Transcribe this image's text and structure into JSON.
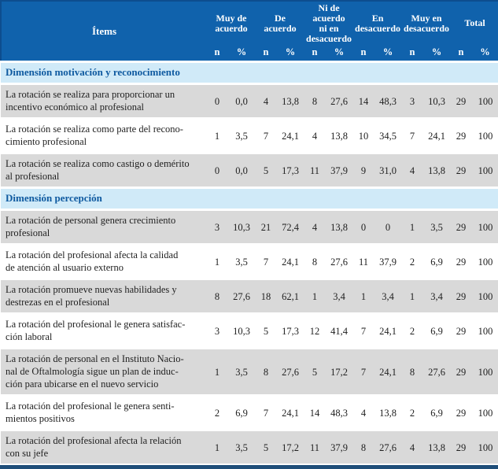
{
  "colors": {
    "header_bg": "#1062AC",
    "header_border": "#0D4D8F",
    "header_text": "#FFFFFF",
    "section_bg": "#D0EAF8",
    "section_text": "#0F5AA0",
    "row_alt_bg": "#D9D9D9",
    "row_bg": "#FFFFFF",
    "body_text": "#1F1F1F",
    "bottom_bar": "#1F4E79"
  },
  "header": {
    "items_label": "Ítems",
    "groups": [
      {
        "label": "Muy de\nacuerdo"
      },
      {
        "label": "De\nacuerdo"
      },
      {
        "label": "Ni de\nacuerdo\nni en\ndesacuerdo"
      },
      {
        "label": "En\ndesacuerdo"
      },
      {
        "label": "Muy en\ndesacuerdo"
      },
      {
        "label": "Total"
      }
    ],
    "n_label": "n",
    "pct_label": "%"
  },
  "sections": [
    {
      "title": "Dimensión motivación y reconocimiento",
      "rows": [
        {
          "item": "La rotación se realiza para proporcionar un\nincentivo económico al profesional",
          "values": [
            "0",
            "0,0",
            "4",
            "13,8",
            "8",
            "27,6",
            "14",
            "48,3",
            "3",
            "10,3",
            "29",
            "100"
          ]
        },
        {
          "item": "La rotación se realiza como parte del recono-\ncimiento profesional",
          "values": [
            "1",
            "3,5",
            "7",
            "24,1",
            "4",
            "13,8",
            "10",
            "34,5",
            "7",
            "24,1",
            "29",
            "100"
          ]
        },
        {
          "item": "La rotación se realiza como castigo o demérito\nal profesional",
          "values": [
            "0",
            "0,0",
            "5",
            "17,3",
            "11",
            "37,9",
            "9",
            "31,0",
            "4",
            "13,8",
            "29",
            "100"
          ]
        }
      ]
    },
    {
      "title": "Dimensión percepción",
      "rows": [
        {
          "item": "La rotación de personal genera crecimiento\nprofesional",
          "values": [
            "3",
            "10,3",
            "21",
            "72,4",
            "4",
            "13,8",
            "0",
            "0",
            "1",
            "3,5",
            "29",
            "100"
          ]
        },
        {
          "item": "La rotación del profesional afecta la calidad\nde atención al usuario externo",
          "values": [
            "1",
            "3,5",
            "7",
            "24,1",
            "8",
            "27,6",
            "11",
            "37,9",
            "2",
            "6,9",
            "29",
            "100"
          ]
        },
        {
          "item": "La rotación promueve nuevas habilidades y\ndestrezas en el profesional",
          "values": [
            "8",
            "27,6",
            "18",
            "62,1",
            "1",
            "3,4",
            "1",
            "3,4",
            "1",
            "3,4",
            "29",
            "100"
          ]
        },
        {
          "item": "La rotación del profesional le genera satisfac-\nción laboral",
          "values": [
            "3",
            "10,3",
            "5",
            "17,3",
            "12",
            "41,4",
            "7",
            "24,1",
            "2",
            "6,9",
            "29",
            "100"
          ]
        },
        {
          "item": "La rotación de personal en el Instituto Nacio-\nnal de Oftalmología sigue un plan de induc-\nción para ubicarse en el nuevo servicio",
          "values": [
            "1",
            "3,5",
            "8",
            "27,6",
            "5",
            "17,2",
            "7",
            "24,1",
            "8",
            "27,6",
            "29",
            "100"
          ]
        },
        {
          "item": "La rotación del profesional le genera senti-\nmientos positivos",
          "values": [
            "2",
            "6,9",
            "7",
            "24,1",
            "14",
            "48,3",
            "4",
            "13,8",
            "2",
            "6,9",
            "29",
            "100"
          ]
        },
        {
          "item": "La rotación del profesional afecta la relación\ncon su jefe",
          "values": [
            "1",
            "3,5",
            "5",
            "17,2",
            "11",
            "37,9",
            "8",
            "27,6",
            "4",
            "13,8",
            "29",
            "100"
          ]
        }
      ]
    }
  ]
}
